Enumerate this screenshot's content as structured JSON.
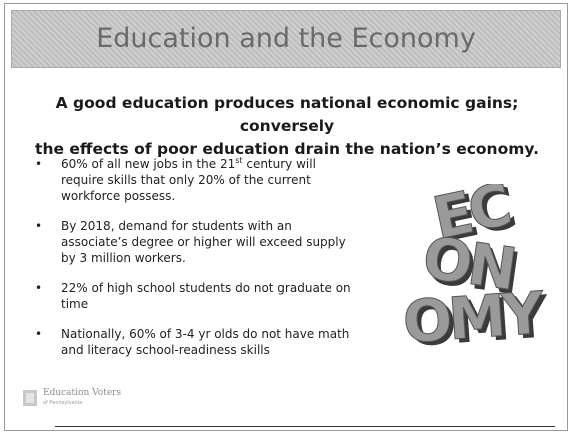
{
  "header": {
    "title": "Education and the Economy"
  },
  "subtitle": {
    "lines": [
      "A good education produces national economic gains; conversely",
      "the effects of poor education drain the nation’s economy."
    ]
  },
  "bullets": [
    {
      "before": "60% of all new jobs in the 21",
      "sup": "st",
      "after": " century will require skills that only 20% of the current workforce possess."
    },
    {
      "before": "By 2018, demand for students with an associate’s degree or higher will exceed supply by 3 million workers."
    },
    {
      "before": "22% of high school students do not graduate on time"
    },
    {
      "before": "Nationally, 60% of 3-4 yr olds do not have math and literacy school-readiness skills"
    }
  ],
  "image": {
    "rows": [
      "EC",
      "ON",
      "OMY"
    ]
  },
  "logo": {
    "name": "Education Voters",
    "sub": "of Pennsylvania"
  }
}
